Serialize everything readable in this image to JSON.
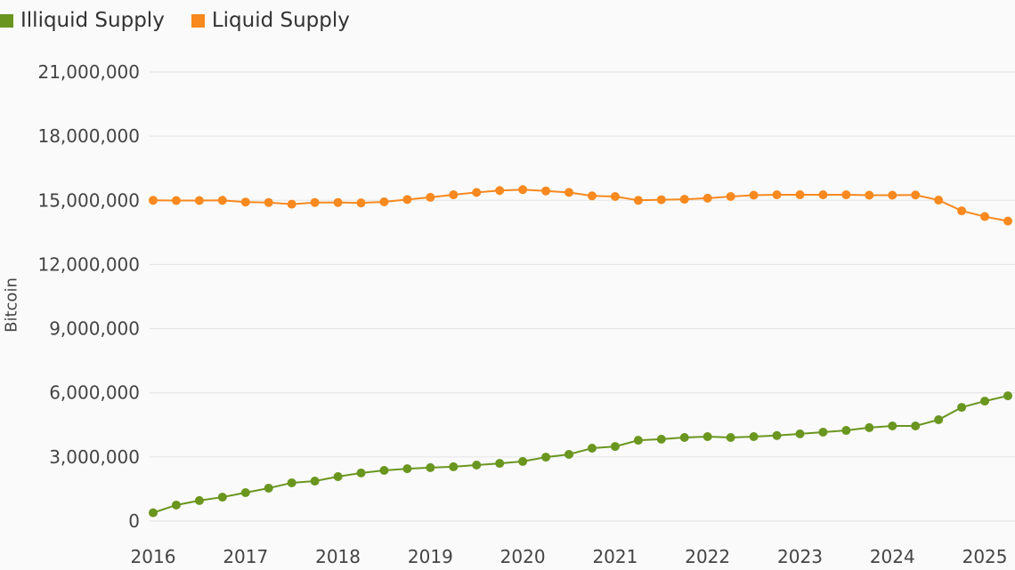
{
  "chart_data": {
    "type": "line",
    "title": "",
    "xlabel": "",
    "ylabel": "Bitcoin",
    "ylim": [
      0,
      21000000
    ],
    "yticks": [
      "0",
      "3,000,000",
      "6,000,000",
      "9,000,000",
      "12,000,000",
      "15,000,000",
      "18,000,000",
      "21,000,000"
    ],
    "ytick_values": [
      0,
      3000000,
      6000000,
      9000000,
      12000000,
      15000000,
      18000000,
      21000000
    ],
    "xticks": [
      "2016",
      "2017",
      "2018",
      "2019",
      "2020",
      "2021",
      "2022",
      "2023",
      "2024",
      "2025"
    ],
    "xtick_values": [
      2016,
      2017,
      2018,
      2019,
      2020,
      2021,
      2022,
      2023,
      2024,
      2025
    ],
    "xlim": [
      2016,
      2025.25
    ],
    "grid": "horizontal",
    "legend_position": "top-left",
    "x": [
      2016.0,
      2016.25,
      2016.5,
      2016.75,
      2017.0,
      2017.25,
      2017.5,
      2017.75,
      2018.0,
      2018.25,
      2018.5,
      2018.75,
      2019.0,
      2019.25,
      2019.5,
      2019.75,
      2020.0,
      2020.25,
      2020.5,
      2020.75,
      2021.0,
      2021.25,
      2021.5,
      2021.75,
      2022.0,
      2022.25,
      2022.5,
      2022.75,
      2023.0,
      2023.25,
      2023.5,
      2023.75,
      2024.0,
      2024.25,
      2024.5,
      2024.75,
      2025.0,
      2025.25
    ],
    "series": [
      {
        "name": "Illiquid Supply",
        "color": "#6a961f",
        "values": [
          390000,
          750000,
          960000,
          1120000,
          1330000,
          1540000,
          1790000,
          1870000,
          2080000,
          2250000,
          2370000,
          2450000,
          2500000,
          2540000,
          2620000,
          2700000,
          2790000,
          2990000,
          3120000,
          3410000,
          3490000,
          3780000,
          3830000,
          3910000,
          3950000,
          3910000,
          3950000,
          4000000,
          4080000,
          4160000,
          4240000,
          4370000,
          4450000,
          4450000,
          4740000,
          5320000,
          5610000,
          5860000
        ]
      },
      {
        "name": "Liquid Supply",
        "color": "#f7891f",
        "values": [
          15000000,
          14990000,
          14990000,
          15000000,
          14920000,
          14900000,
          14820000,
          14900000,
          14900000,
          14880000,
          14930000,
          15040000,
          15140000,
          15260000,
          15370000,
          15460000,
          15500000,
          15440000,
          15370000,
          15210000,
          15180000,
          15000000,
          15030000,
          15050000,
          15100000,
          15180000,
          15240000,
          15260000,
          15260000,
          15260000,
          15260000,
          15240000,
          15240000,
          15250000,
          15010000,
          14510000,
          14240000,
          14030000
        ]
      }
    ]
  }
}
